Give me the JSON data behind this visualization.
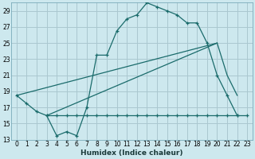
{
  "bg_color": "#cde8ee",
  "grid_color": "#aac8d0",
  "line_color": "#1a6b6b",
  "xlabel": "Humidex (Indice chaleur)",
  "xlim": [
    -0.5,
    23.5
  ],
  "ylim": [
    13,
    30
  ],
  "yticks": [
    13,
    15,
    17,
    19,
    21,
    23,
    25,
    27,
    29
  ],
  "xticks": [
    0,
    1,
    2,
    3,
    4,
    5,
    6,
    7,
    8,
    9,
    10,
    11,
    12,
    13,
    14,
    15,
    16,
    17,
    18,
    19,
    20,
    21,
    22,
    23
  ],
  "line1_x": [
    0,
    1,
    2,
    3,
    4,
    5,
    6,
    7,
    8,
    9,
    10,
    11,
    12,
    13,
    14,
    15,
    16,
    17,
    18,
    19,
    20,
    21,
    22
  ],
  "line1_y": [
    18.5,
    17.5,
    16.5,
    16.0,
    13.5,
    14.0,
    13.5,
    17.0,
    23.5,
    23.5,
    26.5,
    28.0,
    28.5,
    30.0,
    29.5,
    29.0,
    28.5,
    27.5,
    27.5,
    25.0,
    21.0,
    18.5,
    16.0
  ],
  "line2_x": [
    3,
    4,
    5,
    6,
    7,
    8,
    9,
    10,
    11,
    12,
    13,
    14,
    15,
    16,
    17,
    18,
    19,
    20,
    21,
    22,
    23
  ],
  "line2_y": [
    16.0,
    16.0,
    16.0,
    16.0,
    16.0,
    16.0,
    16.0,
    16.0,
    16.0,
    16.0,
    16.0,
    16.0,
    16.0,
    16.0,
    16.0,
    16.0,
    16.0,
    16.0,
    16.0,
    16.0,
    16.0
  ],
  "line3_x": [
    0,
    20
  ],
  "line3_y": [
    18.5,
    25.0
  ],
  "line4_x": [
    3,
    20
  ],
  "line4_y": [
    16.0,
    25.0
  ],
  "line5_x": [
    20,
    21,
    22
  ],
  "line5_y": [
    25.0,
    21.0,
    18.5
  ]
}
